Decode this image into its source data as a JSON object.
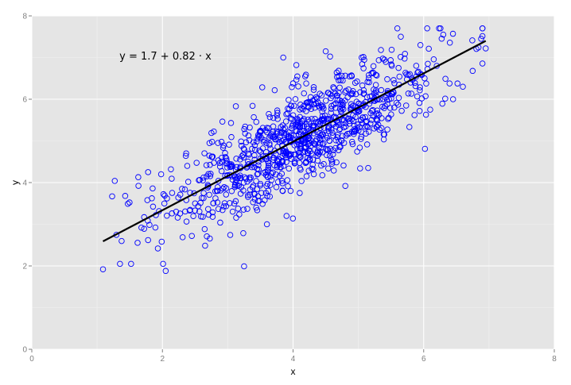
{
  "chart_data": {
    "type": "scatter",
    "title": "",
    "xlabel": "x",
    "ylabel": "y",
    "xlim": [
      0,
      8
    ],
    "ylim": [
      0,
      8
    ],
    "x_ticks": [
      "0",
      "2",
      "4",
      "6",
      "8"
    ],
    "y_ticks": [
      "0",
      "2",
      "4",
      "6",
      "8"
    ],
    "grid": true,
    "annotation": "y = 1.7 + 0.82 · x",
    "annotation_position": "top-left",
    "point_style": "hollow-circle",
    "point_color": "#0000ff",
    "line_color": "#000000",
    "panel_color": "#e5e5e5",
    "series": [
      {
        "type": "scatter",
        "n_points": 1000,
        "points": [
          [
            1.09,
            1.92
          ],
          [
            1.23,
            3.67
          ],
          [
            1.27,
            4.04
          ],
          [
            1.35,
            2.05
          ],
          [
            1.43,
            3.68
          ],
          [
            1.47,
            3.49
          ],
          [
            1.52,
            2.05
          ],
          [
            1.63,
            4.13
          ],
          [
            1.72,
            2.89
          ],
          [
            1.78,
            2.62
          ],
          [
            1.85,
            3.86
          ],
          [
            1.9,
            3.22
          ],
          [
            1.93,
            2.42
          ],
          [
            1.98,
            4.2
          ],
          [
            2.01,
            2.05
          ],
          [
            2.05,
            1.88
          ],
          [
            2.07,
            3.62
          ],
          [
            2.13,
            4.32
          ],
          [
            2.21,
            3.3
          ],
          [
            2.3,
            3.85
          ],
          [
            2.38,
            4.4
          ],
          [
            2.45,
            2.72
          ],
          [
            2.5,
            3.5
          ],
          [
            2.62,
            4.05
          ],
          [
            2.68,
            2.71
          ],
          [
            2.75,
            5.19
          ],
          [
            2.85,
            4.95
          ],
          [
            2.92,
            3.34
          ],
          [
            3.05,
            5.43
          ],
          [
            3.15,
            4.1
          ],
          [
            3.25,
            1.99
          ],
          [
            3.3,
            3.37
          ],
          [
            3.38,
            5.84
          ],
          [
            3.5,
            4.58
          ],
          [
            3.6,
            3.0
          ],
          [
            3.7,
            5.55
          ],
          [
            3.85,
            7.0
          ],
          [
            3.9,
            3.2
          ],
          [
            4.0,
            6.38
          ],
          [
            4.05,
            6.82
          ],
          [
            4.2,
            4.5
          ],
          [
            4.35,
            5.9
          ],
          [
            4.5,
            7.15
          ],
          [
            4.6,
            4.5
          ],
          [
            4.7,
            6.55
          ],
          [
            4.8,
            3.92
          ],
          [
            4.9,
            6.15
          ],
          [
            5.05,
            7.0
          ],
          [
            5.15,
            4.35
          ],
          [
            5.25,
            6.02
          ],
          [
            5.4,
            6.95
          ],
          [
            5.55,
            5.8
          ],
          [
            5.65,
            7.5
          ],
          [
            5.8,
            6.4
          ],
          [
            5.95,
            7.3
          ],
          [
            6.02,
            4.81
          ],
          [
            6.1,
            5.75
          ],
          [
            6.2,
            6.8
          ],
          [
            6.3,
            7.55
          ],
          [
            6.45,
            6.0
          ],
          [
            6.6,
            6.3
          ],
          [
            6.75,
            6.68
          ],
          [
            6.88,
            7.45
          ],
          [
            6.95,
            7.22
          ]
        ]
      },
      {
        "type": "line",
        "intercept": 1.7,
        "slope": 0.82,
        "x": [
          1.09,
          6.95
        ],
        "y": [
          2.59,
          7.4
        ]
      }
    ]
  }
}
